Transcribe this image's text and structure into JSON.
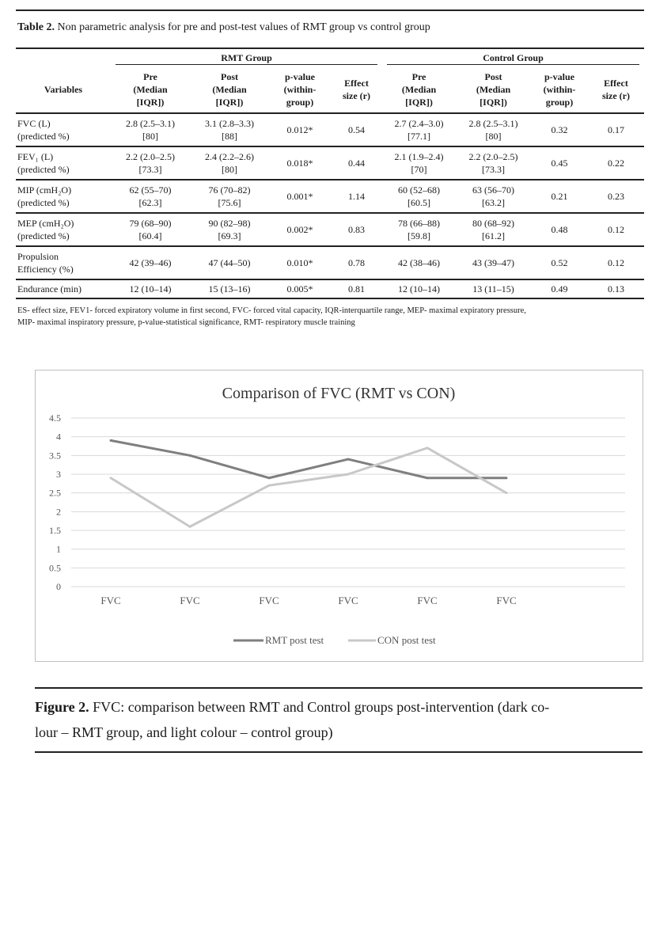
{
  "table": {
    "title_bold": "Table 2.",
    "title_rest": " Non parametric analysis for pre and post-test values of RMT group vs control group",
    "group_rmt": "RMT Group",
    "group_control": "Control Group",
    "col_variables": "Variables",
    "columns": [
      [
        "Pre",
        "(Median",
        "[IQR])"
      ],
      [
        "Post",
        "(Median",
        "[IQR])"
      ],
      [
        "p-value",
        "(within-",
        "group)"
      ],
      [
        "Effect",
        "size (r)"
      ],
      [
        "Pre",
        "(Median",
        "[IQR])"
      ],
      [
        "Post",
        "(Median",
        "[IQR])"
      ],
      [
        "p-value",
        "(within-",
        "group)"
      ],
      [
        "Effect",
        "size (r)"
      ]
    ],
    "rows": [
      {
        "var": [
          "FVC (L)",
          "(predicted %)"
        ],
        "rmt_pre": [
          "2.8 (2.5–3.1)",
          "[80]"
        ],
        "rmt_post": [
          "3.1 (2.8–3.3)",
          "[88]"
        ],
        "rmt_p": "0.012*",
        "rmt_r": "0.54",
        "con_pre": [
          "2.7 (2.4–3.0)",
          "[77.1]"
        ],
        "con_post": [
          "2.8 (2.5–3.1)",
          "[80]"
        ],
        "con_p": "0.32",
        "con_r": "0.17"
      },
      {
        "var": [
          "FEV₁ (L)",
          "(predicted %)"
        ],
        "rmt_pre": [
          "2.2 (2.0–2.5)",
          "[73.3]"
        ],
        "rmt_post": [
          "2.4 (2.2–2.6)",
          "[80]"
        ],
        "rmt_p": "0.018*",
        "rmt_r": "0.44",
        "con_pre": [
          "2.1 (1.9–2.4)",
          "[70]"
        ],
        "con_post": [
          "2.2 (2.0–2.5)",
          "[73.3]"
        ],
        "con_p": "0.45",
        "con_r": "0.22"
      },
      {
        "var": [
          "MIP (cmH₂O)",
          "(predicted %)"
        ],
        "rmt_pre": [
          "62 (55–70)",
          "[62.3]"
        ],
        "rmt_post": [
          "76 (70–82)",
          "[75.6]"
        ],
        "rmt_p": "0.001*",
        "rmt_r": "1.14",
        "con_pre": [
          "60 (52–68)",
          "[60.5]"
        ],
        "con_post": [
          "63 (56–70)",
          "[63.2]"
        ],
        "con_p": "0.21",
        "con_r": "0.23"
      },
      {
        "var": [
          "MEP (cmH₂O)",
          "(predicted %)"
        ],
        "rmt_pre": [
          "79 (68–90)",
          "[60.4]"
        ],
        "rmt_post": [
          "90 (82–98)",
          "[69.3]"
        ],
        "rmt_p": "0.002*",
        "rmt_r": "0.83",
        "con_pre": [
          "78 (66–88)",
          "[59.8]"
        ],
        "con_post": [
          "80 (68–92)",
          "[61.2]"
        ],
        "con_p": "0.48",
        "con_r": "0.12"
      },
      {
        "var": [
          "Propulsion",
          "Efficiency (%)"
        ],
        "rmt_pre": [
          "42 (39–46)"
        ],
        "rmt_post": [
          "47 (44–50)"
        ],
        "rmt_p": "0.010*",
        "rmt_r": "0.78",
        "con_pre": [
          "42 (38–46)"
        ],
        "con_post": [
          "43 (39–47)"
        ],
        "con_p": "0.52",
        "con_r": "0.12"
      },
      {
        "var": [
          "Endurance (min)"
        ],
        "rmt_pre": [
          "12 (10–14)"
        ],
        "rmt_post": [
          "15 (13–16)"
        ],
        "rmt_p": "0.005*",
        "rmt_r": "0.81",
        "con_pre": [
          "12 (10–14)"
        ],
        "con_post": [
          "13 (11–15)"
        ],
        "con_p": "0.49",
        "con_r": "0.13"
      }
    ],
    "footnote_line1": "ES- effect size, FEV1- forced expiratory volume in first second, FVC- forced vital capacity, IQR-interquartile range, MEP- maximal expiratory pressure,",
    "footnote_line2": "MIP- maximal inspiratory pressure, p-value-statistical significance, RMT- respiratory muscle training"
  },
  "chart_data": {
    "type": "line",
    "title": "Comparison of FVC (RMT vs CON)",
    "categories": [
      "FVC",
      "FVC",
      "FVC",
      "FVC",
      "FVC",
      "FVC"
    ],
    "series": [
      {
        "name": "RMT post test",
        "values": [
          3.9,
          3.5,
          2.9,
          3.4,
          2.9,
          2.9
        ],
        "color": "#7f7f7f"
      },
      {
        "name": "CON post test",
        "values": [
          2.9,
          1.6,
          2.7,
          3.0,
          3.7,
          2.5
        ],
        "color": "#c8c8c8"
      }
    ],
    "yticks": [
      "0",
      "0.5",
      "1",
      "1.5",
      "2",
      "2.5",
      "3",
      "3.5",
      "4",
      "4.5"
    ],
    "ylim": [
      0,
      4.5
    ],
    "xlabel": "",
    "ylabel": "",
    "grid": true,
    "legend": "bottom"
  },
  "figure": {
    "caption_bold": "Figure 2.",
    "caption_line1": " FVC: comparison between RMT and Control groups post-intervention (dark co-",
    "caption_line2": "lour – RMT group, and light colour – control group)"
  }
}
